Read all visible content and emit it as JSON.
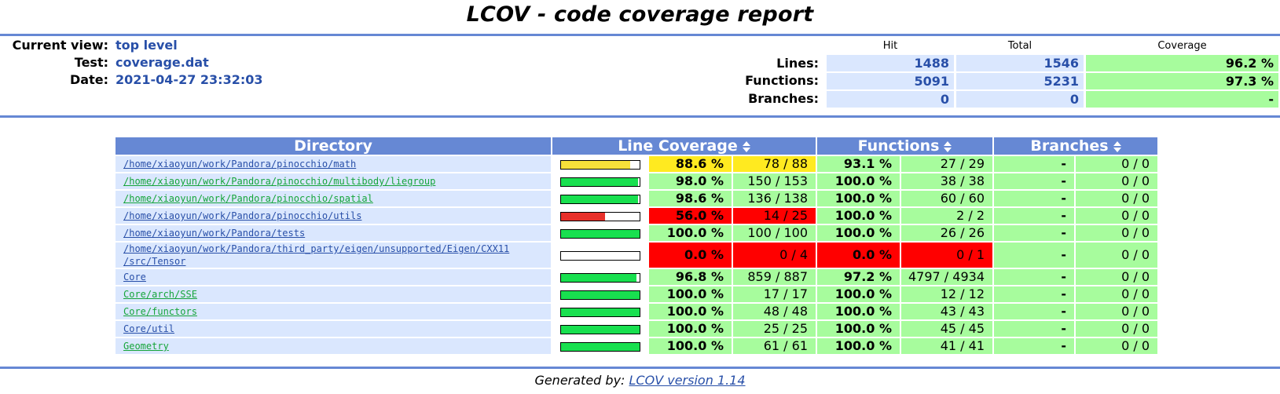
{
  "page": {
    "title": "LCOV - code coverage report",
    "colors": {
      "accent": "#6688d4",
      "link": "#284fa8",
      "hi": "#a7fc9d",
      "med": "#ffea20",
      "lo": "#ff0000",
      "bar_hi": "#18e04f",
      "bar_med": "#f7e03a",
      "bar_lo": "#e8302a"
    }
  },
  "header": {
    "current_view_label": "Current view:",
    "current_view_value": "top level",
    "test_label": "Test:",
    "test_value": "coverage.dat",
    "date_label": "Date:",
    "date_value": "2021-04-27 23:32:03"
  },
  "summary": {
    "col_hit": "Hit",
    "col_total": "Total",
    "col_coverage": "Coverage",
    "rows": [
      {
        "label": "Lines:",
        "hit": "1488",
        "total": "1546",
        "coverage": "96.2 %"
      },
      {
        "label": "Functions:",
        "hit": "5091",
        "total": "5231",
        "coverage": "97.3 %"
      },
      {
        "label": "Branches:",
        "hit": "0",
        "total": "0",
        "coverage": "-"
      }
    ]
  },
  "table": {
    "headers": {
      "directory": "Directory",
      "line_coverage": "Line Coverage",
      "functions": "Functions",
      "branches": "Branches"
    },
    "rows": [
      {
        "dir": "/home/xiaoyun/work/Pandora/pinocchio/math",
        "bar": 0.886,
        "level": "med",
        "line_pct": "88.6 %",
        "line_cnt": "78 / 88",
        "fn_level": "hi",
        "fn_pct": "93.1 %",
        "fn_cnt": "27 / 29",
        "br_pct": "-",
        "br_cnt": "0 / 0"
      },
      {
        "dir": "/home/xiaoyun/work/Pandora/pinocchio/multibody/liegroup",
        "bar": 0.98,
        "level": "hi",
        "line_pct": "98.0 %",
        "line_cnt": "150 / 153",
        "fn_level": "hi",
        "fn_pct": "100.0 %",
        "fn_cnt": "38 / 38",
        "br_pct": "-",
        "br_cnt": "0 / 0"
      },
      {
        "dir": "/home/xiaoyun/work/Pandora/pinocchio/spatial",
        "bar": 0.986,
        "level": "hi",
        "line_pct": "98.6 %",
        "line_cnt": "136 / 138",
        "fn_level": "hi",
        "fn_pct": "100.0 %",
        "fn_cnt": "60 / 60",
        "br_pct": "-",
        "br_cnt": "0 / 0"
      },
      {
        "dir": "/home/xiaoyun/work/Pandora/pinocchio/utils",
        "bar": 0.56,
        "level": "lo",
        "line_pct": "56.0 %",
        "line_cnt": "14 / 25",
        "fn_level": "hi",
        "fn_pct": "100.0 %",
        "fn_cnt": "2 / 2",
        "br_pct": "-",
        "br_cnt": "0 / 0"
      },
      {
        "dir": "/home/xiaoyun/work/Pandora/tests",
        "bar": 1.0,
        "level": "hi",
        "line_pct": "100.0 %",
        "line_cnt": "100 / 100",
        "fn_level": "hi",
        "fn_pct": "100.0 %",
        "fn_cnt": "26 / 26",
        "br_pct": "-",
        "br_cnt": "0 / 0"
      },
      {
        "dir": "/home/xiaoyun/work/Pandora/third_party/eigen/unsupported/Eigen/CXX11",
        "dir2": "/src/Tensor",
        "bar": 0.0,
        "level": "lo",
        "line_pct": "0.0 %",
        "line_cnt": "0 / 4",
        "fn_level": "lo",
        "fn_pct": "0.0 %",
        "fn_cnt": "0 / 1",
        "br_pct": "-",
        "br_cnt": "0 / 0"
      },
      {
        "dir": "Core",
        "bar": 0.968,
        "level": "hi",
        "line_pct": "96.8 %",
        "line_cnt": "859 / 887",
        "fn_level": "hi",
        "fn_pct": "97.2 %",
        "fn_cnt": "4797 / 4934",
        "br_pct": "-",
        "br_cnt": "0 / 0"
      },
      {
        "dir": "Core/arch/SSE",
        "bar": 1.0,
        "level": "hi",
        "line_pct": "100.0 %",
        "line_cnt": "17 / 17",
        "fn_level": "hi",
        "fn_pct": "100.0 %",
        "fn_cnt": "12 / 12",
        "br_pct": "-",
        "br_cnt": "0 / 0"
      },
      {
        "dir": "Core/functors",
        "bar": 1.0,
        "level": "hi",
        "line_pct": "100.0 %",
        "line_cnt": "48 / 48",
        "fn_level": "hi",
        "fn_pct": "100.0 %",
        "fn_cnt": "43 / 43",
        "br_pct": "-",
        "br_cnt": "0 / 0"
      },
      {
        "dir": "Core/util",
        "bar": 1.0,
        "level": "hi",
        "line_pct": "100.0 %",
        "line_cnt": "25 / 25",
        "fn_level": "hi",
        "fn_pct": "100.0 %",
        "fn_cnt": "45 / 45",
        "br_pct": "-",
        "br_cnt": "0 / 0"
      },
      {
        "dir": "Geometry",
        "bar": 1.0,
        "level": "hi",
        "line_pct": "100.0 %",
        "line_cnt": "61 / 61",
        "fn_level": "hi",
        "fn_pct": "100.0 %",
        "fn_cnt": "41 / 41",
        "br_pct": "-",
        "br_cnt": "0 / 0"
      }
    ]
  },
  "footer": {
    "generated_by": "Generated by:",
    "link_text": "LCOV version 1.14"
  }
}
